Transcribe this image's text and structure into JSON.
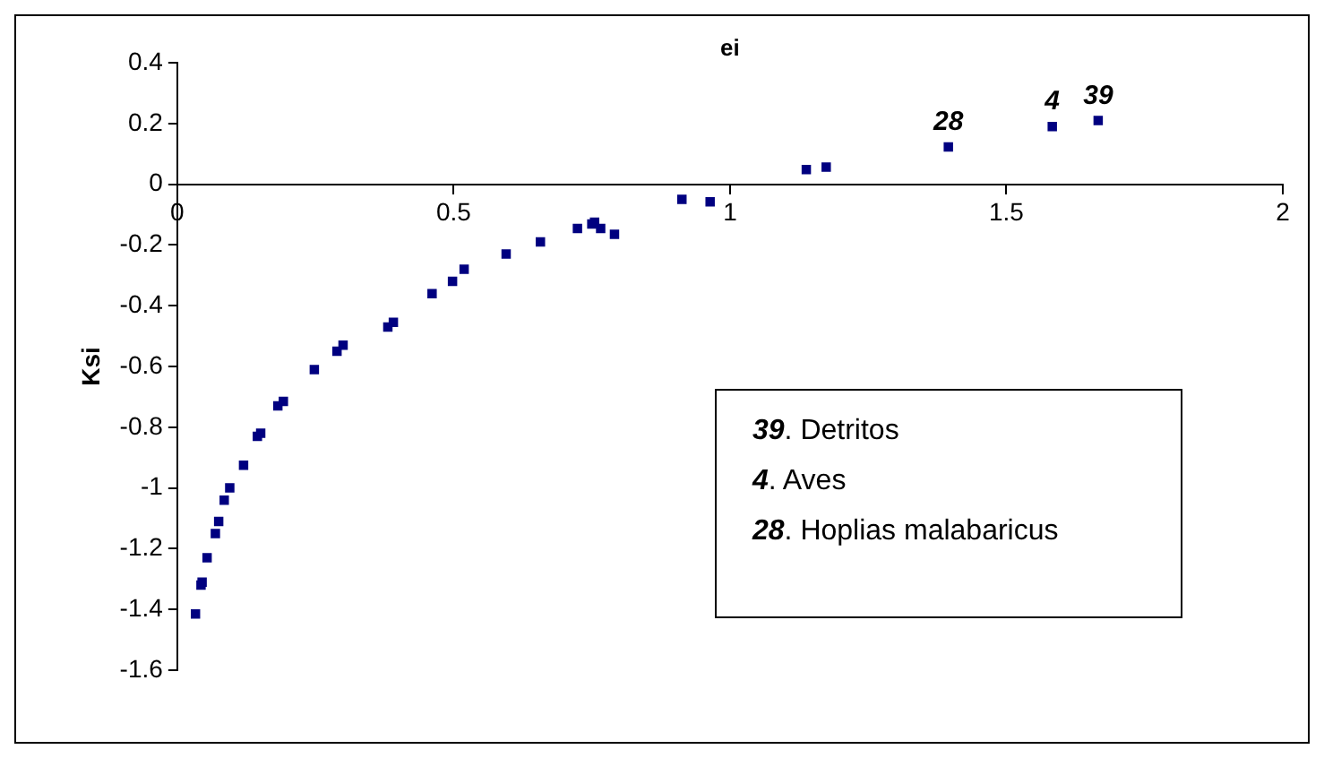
{
  "chart_data": {
    "type": "scatter",
    "xlabel": "ei",
    "ylabel": "Ksi",
    "x": [
      0.033,
      0.043,
      0.045,
      0.054,
      0.069,
      0.075,
      0.085,
      0.095,
      0.12,
      0.145,
      0.151,
      0.182,
      0.192,
      0.248,
      0.289,
      0.3,
      0.381,
      0.391,
      0.461,
      0.498,
      0.519,
      0.595,
      0.657,
      0.724,
      0.75,
      0.755,
      0.766,
      0.791,
      0.913,
      0.964,
      1.138,
      1.174,
      1.395,
      1.583,
      1.666
    ],
    "series": [
      {
        "color": "#000080",
        "values": [
          -1.415,
          -1.32,
          -1.31,
          -1.23,
          -1.15,
          -1.11,
          -1.04,
          -1.0,
          -0.925,
          -0.83,
          -0.82,
          -0.73,
          -0.715,
          -0.61,
          -0.55,
          -0.53,
          -0.47,
          -0.455,
          -0.36,
          -0.32,
          -0.28,
          -0.23,
          -0.19,
          -0.146,
          -0.131,
          -0.125,
          -0.146,
          -0.165,
          -0.05,
          -0.058,
          0.048,
          0.056,
          0.123,
          0.19,
          0.21
        ]
      }
    ],
    "xlim": [
      0,
      2
    ],
    "xticks": [
      0,
      0.5,
      1,
      1.5,
      2
    ],
    "ylim": [
      -1.6,
      0.4
    ],
    "yticks": [
      -1.6,
      -1.4,
      -1.2,
      -1,
      -0.8,
      -0.6,
      -0.4,
      -0.2,
      0,
      0.2,
      0.4
    ],
    "grid": false,
    "legend": false,
    "marker": "square",
    "annotations": [
      {
        "text": "28",
        "x": 1.395,
        "y": 0.123
      },
      {
        "text": "4",
        "x": 1.583,
        "y": 0.19
      },
      {
        "text": "39",
        "x": 1.666,
        "y": 0.21
      },
      "39. Detritos",
      "4. Aves",
      "28. Hoplias malabaricus"
    ]
  }
}
